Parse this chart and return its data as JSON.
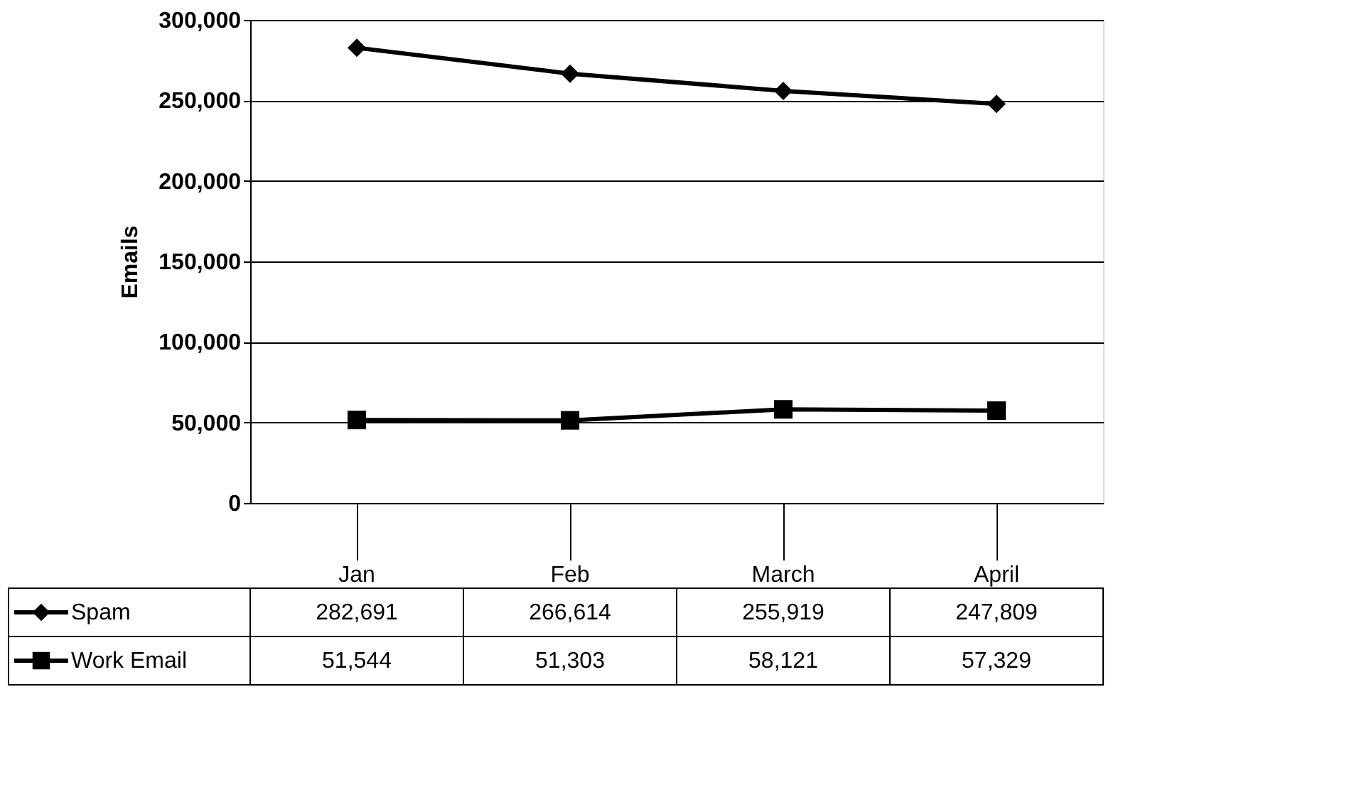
{
  "chart_data": {
    "type": "line",
    "ylabel": "Emails",
    "categories": [
      "Jan",
      "Feb",
      "March",
      "April"
    ],
    "series": [
      {
        "name": "Spam",
        "color": "#000000",
        "marker": "diamond",
        "values": [
          282691,
          266614,
          255919,
          247809
        ],
        "value_labels": [
          "282,691",
          "266,614",
          "255,919",
          "247,809"
        ]
      },
      {
        "name": "Work Email",
        "color": "#000000",
        "marker": "square",
        "values": [
          51544,
          51303,
          58121,
          57329
        ],
        "value_labels": [
          "51,544",
          "51,303",
          "58,121",
          "57,329"
        ]
      }
    ],
    "ylim": [
      0,
      300000
    ],
    "yticks": [
      {
        "value": 0,
        "label": "0"
      },
      {
        "value": 50000,
        "label": "50,000"
      },
      {
        "value": 100000,
        "label": "100,000"
      },
      {
        "value": 150000,
        "label": "150,000"
      },
      {
        "value": 200000,
        "label": "200,000"
      },
      {
        "value": 250000,
        "label": "250,000"
      },
      {
        "value": 300000,
        "label": "300,000"
      }
    ],
    "grid": "y",
    "legend": "bottom left"
  }
}
